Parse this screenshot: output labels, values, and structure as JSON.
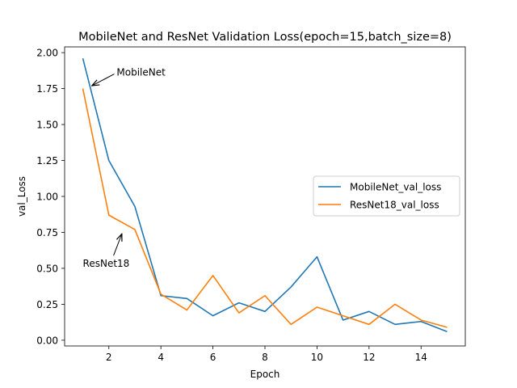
{
  "chart_data": {
    "type": "line",
    "title": "MobileNet and ResNet Validation Loss(epoch=15,batch_size=8)",
    "xlabel": "Epoch",
    "ylabel": "val_Loss",
    "xlim": [
      0.3,
      15.7
    ],
    "ylim": [
      -0.04,
      2.04
    ],
    "xticks": [
      2,
      4,
      6,
      8,
      10,
      12,
      14
    ],
    "yticks": [
      0.0,
      0.25,
      0.5,
      0.75,
      1.0,
      1.25,
      1.5,
      1.75,
      2.0
    ],
    "ytick_labels": [
      "0.00",
      "0.25",
      "0.50",
      "0.75",
      "1.00",
      "1.25",
      "1.50",
      "1.75",
      "2.00"
    ],
    "grid": false,
    "legend_position": "center-right",
    "x": [
      1,
      2,
      3,
      4,
      5,
      6,
      7,
      8,
      9,
      10,
      11,
      12,
      13,
      14,
      15
    ],
    "series": [
      {
        "name": "MobileNet_val_loss",
        "color": "#1f77b4",
        "values": [
          1.96,
          1.25,
          0.93,
          0.31,
          0.29,
          0.17,
          0.26,
          0.2,
          0.37,
          0.58,
          0.14,
          0.2,
          0.11,
          0.13,
          0.06
        ]
      },
      {
        "name": "ResNet18_val_loss",
        "color": "#ff7f0e",
        "values": [
          1.75,
          0.87,
          0.77,
          0.32,
          0.21,
          0.45,
          0.19,
          0.31,
          0.11,
          0.23,
          0.17,
          0.11,
          0.25,
          0.14,
          0.09
        ]
      }
    ],
    "annotations": [
      {
        "text": "MobileNet",
        "point": [
          1.35,
          1.77
        ],
        "text_at": [
          2.3,
          1.84
        ]
      },
      {
        "text": "ResNet18",
        "point": [
          2.5,
          0.74
        ],
        "text_at": [
          1.0,
          0.51
        ]
      }
    ]
  }
}
